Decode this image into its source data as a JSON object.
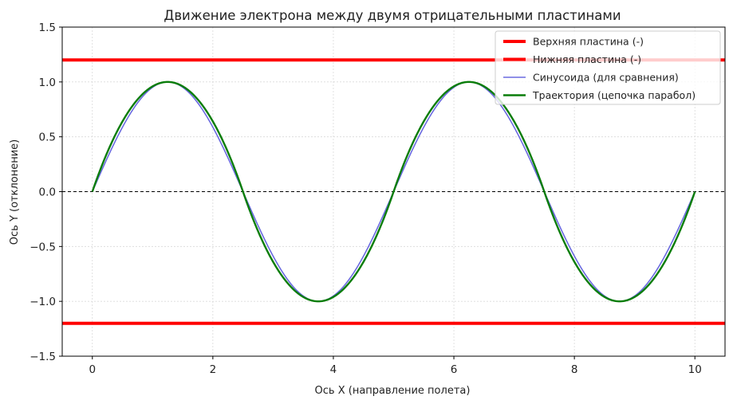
{
  "chart_data": {
    "type": "line",
    "title": "Движение электрона между двумя отрицательными пластинами",
    "xlabel": "Ось X (направление полета)",
    "ylabel": "Ось Y (отклонение)",
    "xlim": [
      -0.5,
      10.5
    ],
    "ylim": [
      -1.5,
      1.5
    ],
    "xticks": [
      0,
      2,
      4,
      6,
      8,
      10
    ],
    "xtick_labels": [
      "0",
      "2",
      "4",
      "6",
      "8",
      "10"
    ],
    "yticks": [
      -1.5,
      -1.0,
      -0.5,
      0.0,
      0.5,
      1.0,
      1.5
    ],
    "ytick_labels": [
      "−1.5",
      "−1.0",
      "−0.5",
      "0.0",
      "0.5",
      "1.0",
      "1.5"
    ],
    "grid": true,
    "legend_position": "top-right",
    "zero_line": {
      "y": 0,
      "style": "dashed",
      "color": "#000000"
    },
    "series": [
      {
        "name": "Верхняя пластина (-)",
        "kind": "hline",
        "y": 1.2,
        "color": "#ff0000"
      },
      {
        "name": "Нижняя пластина (-)",
        "kind": "hline",
        "y": -1.2,
        "color": "#ff0000"
      },
      {
        "name": "Синусоида (для сравнения)",
        "kind": "sine",
        "amplitude": 1,
        "period": 5,
        "x_range": [
          0,
          10
        ],
        "color": "#6a6ae0"
      },
      {
        "name": "Траектория (цепочка парабол)",
        "kind": "parabola-chain",
        "amplitude": 1,
        "half_period": 2.5,
        "x_range": [
          0,
          10
        ],
        "color": "#0a7d0a"
      }
    ]
  }
}
